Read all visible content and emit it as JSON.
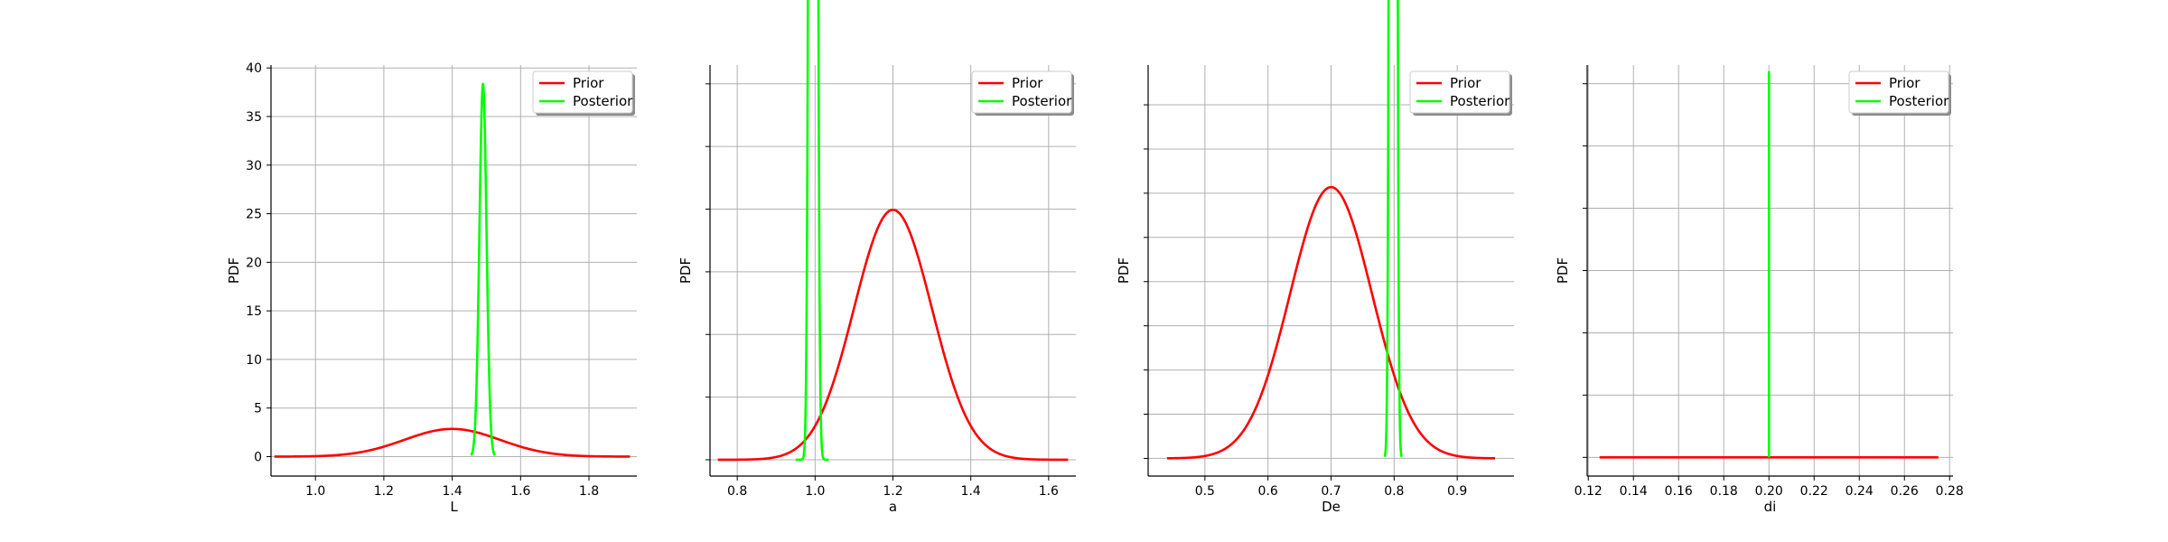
{
  "chart_data": [
    {
      "type": "line",
      "xlabel": "L",
      "ylabel": "PDF",
      "xlim": [
        0.87,
        1.94
      ],
      "ylim": [
        -2.0,
        40.3
      ],
      "xticks": [
        1.0,
        1.2,
        1.4,
        1.6,
        1.8
      ],
      "xtick_labels": [
        "1.0",
        "1.2",
        "1.4",
        "1.6",
        "1.8"
      ],
      "yticks": [
        0,
        5,
        10,
        15,
        20,
        25,
        30,
        35,
        40
      ],
      "ytick_labels": [
        "0",
        "5",
        "10",
        "15",
        "20",
        "25",
        "30",
        "35",
        "40"
      ],
      "grid": true,
      "legend": "top-right",
      "series": [
        {
          "name": "Prior",
          "color": "#ff0000",
          "dist": "normal",
          "mean": 1.4,
          "sd": 0.14,
          "range": [
            0.88,
            1.92
          ]
        },
        {
          "name": "Posterior",
          "color": "#00ff00",
          "dist": "normal",
          "mean": 1.49,
          "sd": 0.0104,
          "range": [
            1.455,
            1.525
          ]
        }
      ]
    },
    {
      "type": "line",
      "xlabel": "a",
      "ylabel": "PDF",
      "xlim": [
        0.73,
        1.67
      ],
      "ylim": [
        -0.26,
        6.3
      ],
      "xticks": [
        0.8,
        1.0,
        1.2,
        1.4,
        1.6
      ],
      "xtick_labels": [
        "0.8",
        "1.0",
        "1.2",
        "1.4",
        "1.6"
      ],
      "yticks": [
        0,
        1,
        2,
        3,
        4,
        5,
        6
      ],
      "ytick_labels": [
        "",
        "",
        "",
        "",
        "",
        "",
        ""
      ],
      "grid": true,
      "legend": "top-right",
      "series": [
        {
          "name": "Prior",
          "color": "#ff0000",
          "dist": "normal",
          "mean": 1.2,
          "sd": 0.1,
          "range": [
            0.75,
            1.65
          ]
        },
        {
          "name": "Posterior",
          "color": "#00ff00",
          "dist": "normal",
          "mean": 0.995,
          "sd": 0.0066,
          "range": [
            0.95,
            1.035
          ]
        }
      ]
    },
    {
      "type": "line",
      "xlabel": "De",
      "ylabel": "PDF",
      "xlim": [
        0.41,
        0.99
      ],
      "ylim": [
        -0.4,
        8.9
      ],
      "xticks": [
        0.5,
        0.6,
        0.7,
        0.8,
        0.9
      ],
      "xtick_labels": [
        "0.5",
        "0.6",
        "0.7",
        "0.8",
        "0.9"
      ],
      "yticks": [
        0,
        1,
        2,
        3,
        4,
        5,
        6,
        7,
        8
      ],
      "ytick_labels": [
        "",
        "",
        "",
        "",
        "",
        "",
        "",
        "",
        ""
      ],
      "grid": true,
      "legend": "top-right",
      "series": [
        {
          "name": "Prior",
          "color": "#ff0000",
          "dist": "normal",
          "mean": 0.7,
          "sd": 0.065,
          "range": [
            0.44,
            0.96
          ]
        },
        {
          "name": "Posterior",
          "color": "#00ff00",
          "dist": "normal",
          "mean": 0.7985,
          "sd": 0.00335,
          "range": [
            0.785,
            0.812
          ]
        }
      ]
    },
    {
      "type": "line",
      "xlabel": "di",
      "ylabel": "PDF",
      "xlim": [
        0.1195,
        0.2815
      ],
      "ylim": [
        -0.3,
        6.3
      ],
      "xticks": [
        0.12,
        0.14,
        0.16,
        0.18,
        0.2,
        0.22,
        0.24,
        0.26,
        0.28
      ],
      "xtick_labels": [
        "0.12",
        "0.14",
        "0.16",
        "0.18",
        "0.20",
        "0.22",
        "0.24",
        "0.26",
        "0.28"
      ],
      "yticks": [
        0,
        1,
        2,
        3,
        4,
        5,
        6
      ],
      "ytick_labels": [
        "",
        "",
        "",
        "",
        "",
        "",
        ""
      ],
      "grid": true,
      "legend": "top-right",
      "series": [
        {
          "name": "Prior",
          "color": "#ff0000",
          "dist": "uniform",
          "level": 0.0,
          "range": [
            0.125,
            0.275
          ]
        },
        {
          "name": "Posterior",
          "color": "#00ff00",
          "dist": "spike",
          "at": 0.2,
          "peak": 6.2,
          "range": [
            0.2,
            0.2
          ]
        }
      ]
    }
  ]
}
